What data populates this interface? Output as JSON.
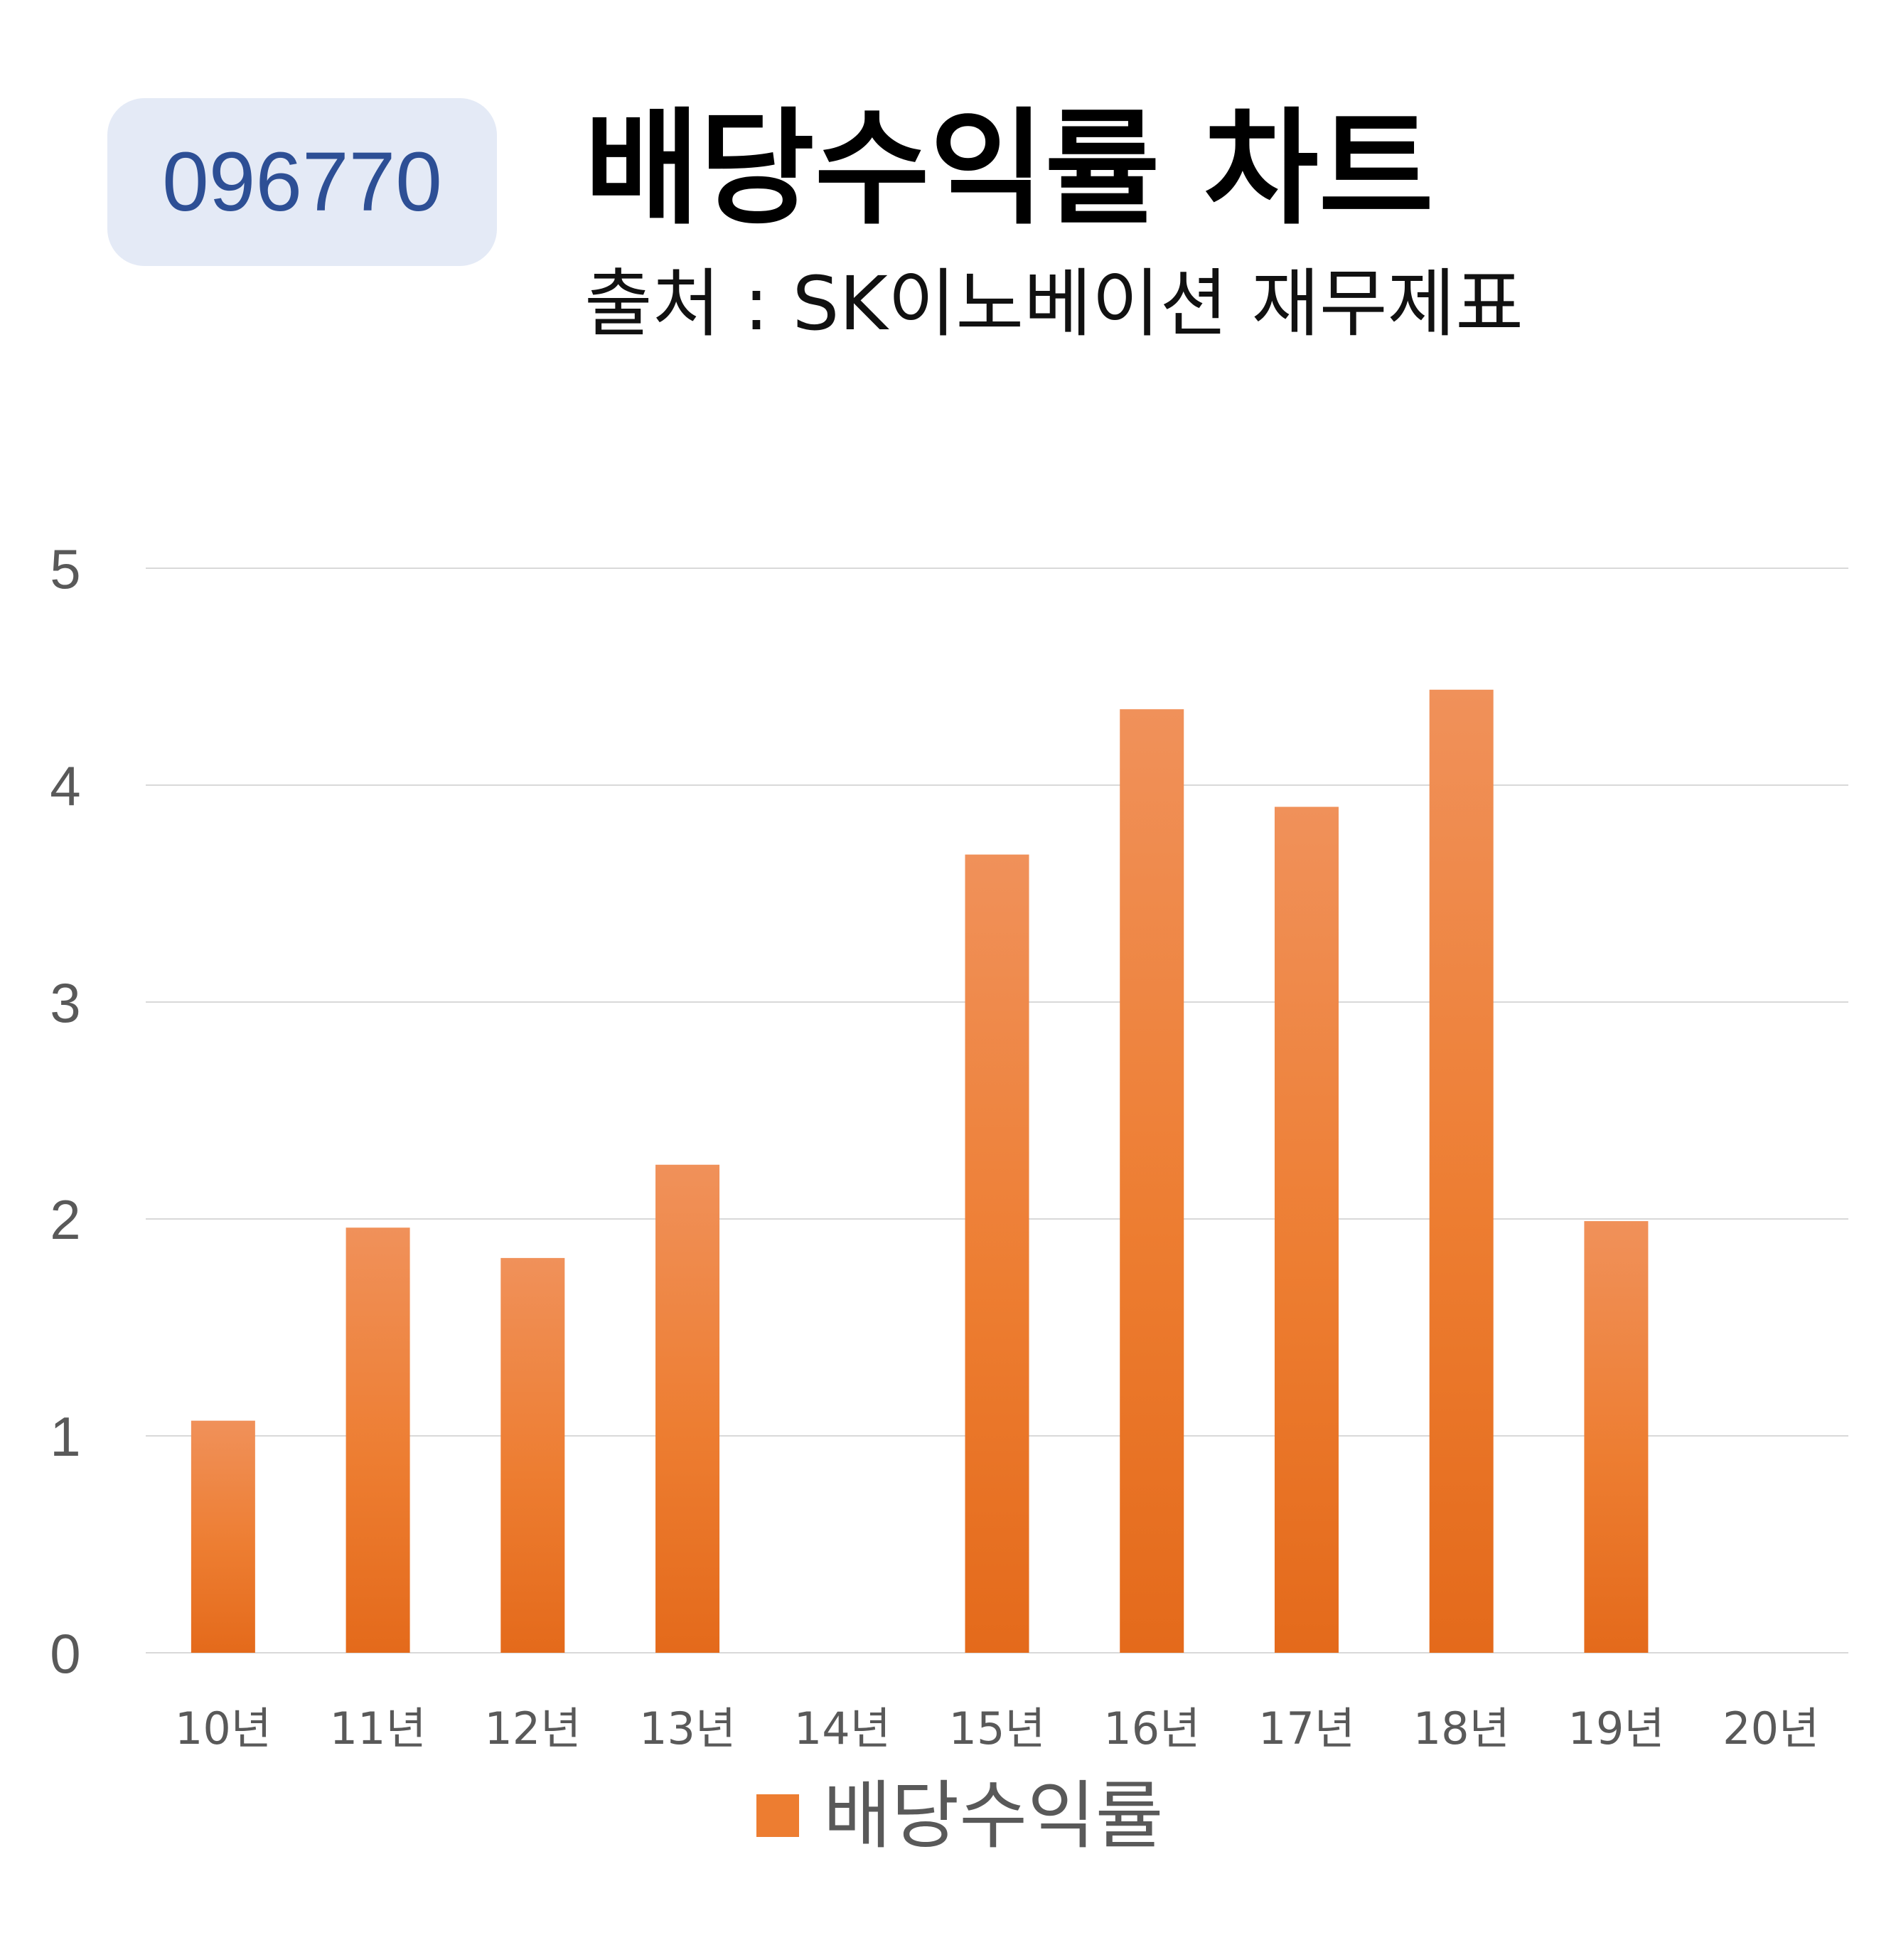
{
  "badge": {
    "code": "096770"
  },
  "header": {
    "title": "배당수익률 차트",
    "subtitle": "출처 : SK이노베이션 재무제표"
  },
  "colors": {
    "bar": "#ed7d31",
    "bar_light": "#f0915a",
    "bar_dark": "#e46a1b",
    "grid": "#d9d9d9",
    "tick_text": "#595959",
    "badge_bg": "#e4eaf6",
    "badge_text": "#2d4f95"
  },
  "chart_data": {
    "type": "bar",
    "title": "배당수익률 차트",
    "xlabel": "",
    "ylabel": "",
    "categories": [
      "10년",
      "11년",
      "12년",
      "13년",
      "14년",
      "15년",
      "16년",
      "17년",
      "18년",
      "19년",
      "20년"
    ],
    "series": [
      {
        "name": "배당수익률",
        "values": [
          1.07,
          1.96,
          1.82,
          2.25,
          0,
          3.68,
          4.35,
          3.9,
          4.44,
          1.99,
          0
        ]
      }
    ],
    "ylim": [
      0,
      5
    ],
    "yticks": [
      "0",
      "1",
      "2",
      "3",
      "4",
      "5"
    ],
    "grid": true,
    "legend": "bottom"
  }
}
